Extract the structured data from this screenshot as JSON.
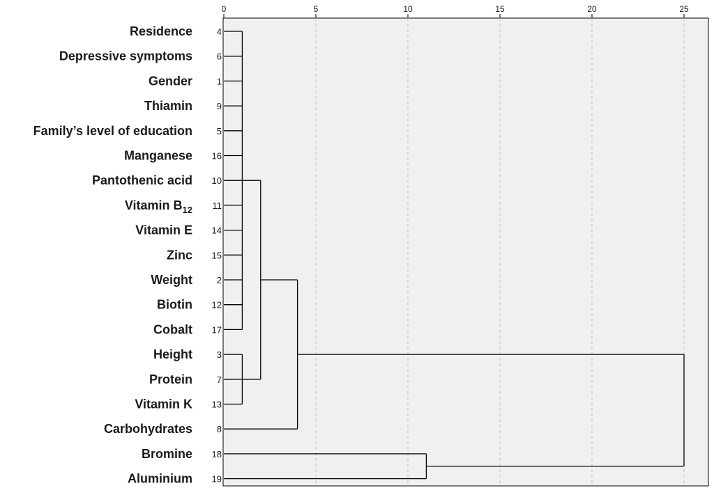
{
  "chart_data": {
    "type": "dendrogram",
    "x_axis": {
      "ticks": [
        0,
        5,
        10,
        15,
        20,
        25
      ],
      "range": [
        0,
        26
      ],
      "grid": "dashed-vertical"
    },
    "leaves": [
      {
        "label": "Residence",
        "label_sub": "",
        "id": "4"
      },
      {
        "label": "Depressive symptoms",
        "label_sub": "",
        "id": "6"
      },
      {
        "label": "Gender",
        "label_sub": "",
        "id": "1"
      },
      {
        "label": "Thiamin",
        "label_sub": "",
        "id": "9"
      },
      {
        "label": "Family’s level of education",
        "label_sub": "",
        "id": "5"
      },
      {
        "label": "Manganese",
        "label_sub": "",
        "id": "16"
      },
      {
        "label": "Pantothenic acid",
        "label_sub": "",
        "id": "10"
      },
      {
        "label": "Vitamin B",
        "label_sub": "12",
        "id": "11"
      },
      {
        "label": "Vitamin E",
        "label_sub": "",
        "id": "14"
      },
      {
        "label": "Zinc",
        "label_sub": "",
        "id": "15"
      },
      {
        "label": "Weight",
        "label_sub": "",
        "id": "2"
      },
      {
        "label": "Biotin",
        "label_sub": "",
        "id": "12"
      },
      {
        "label": "Cobalt",
        "label_sub": "",
        "id": "17"
      },
      {
        "label": "Height",
        "label_sub": "",
        "id": "3"
      },
      {
        "label": "Protein",
        "label_sub": "",
        "id": "7"
      },
      {
        "label": "Vitamin K",
        "label_sub": "",
        "id": "13"
      },
      {
        "label": "Carbohydrates",
        "label_sub": "",
        "id": "8"
      },
      {
        "label": "Bromine",
        "label_sub": "",
        "id": "18"
      },
      {
        "label": "Aluminium",
        "label_sub": "",
        "id": "19"
      }
    ],
    "merges": [
      {
        "members": [
          0,
          1,
          2,
          3,
          4,
          5,
          6,
          7,
          8,
          9,
          10,
          11,
          12
        ],
        "height": 1
      },
      {
        "members": [
          13,
          14,
          15
        ],
        "height": 1
      },
      {
        "members": [
          "m0",
          "m1"
        ],
        "height": 2
      },
      {
        "members": [
          "m2",
          16
        ],
        "height": 4
      },
      {
        "members": [
          17,
          18
        ],
        "height": 11
      },
      {
        "members": [
          "m3",
          "m4"
        ],
        "height": 25
      }
    ]
  }
}
